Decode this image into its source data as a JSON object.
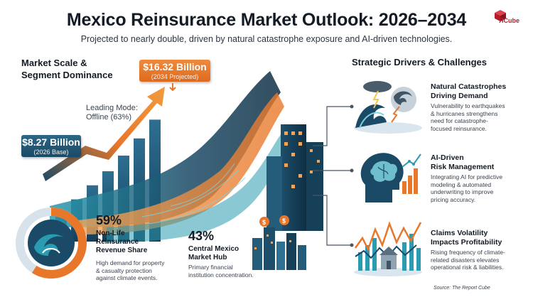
{
  "header": {
    "title": "Mexico Reinsurance Market Outlook: 2026–2034",
    "subtitle": "Projected to nearly double, driven by natural catastrophe exposure and AI-driven technologies."
  },
  "brand": {
    "logo_text": "Cube",
    "logo_letter": "R"
  },
  "market": {
    "heading_line1": "Market Scale &",
    "heading_line2": "Segment Dominance",
    "projected_value": "$16.32 Billion",
    "projected_note": "(2034 Projected)",
    "base_value": "$8.27 Billion",
    "base_note": "(2026 Base)",
    "mode_line1": "Leading Mode:",
    "mode_line2": "Offline (63%)",
    "bar_levels": [
      0.18,
      0.27,
      0.36,
      0.45,
      0.55,
      0.66,
      0.78
    ]
  },
  "stats": [
    {
      "pct": "59%",
      "label_lines": [
        "Non-Life",
        "Reinsurance",
        "Revenue Share"
      ],
      "desc_lines": [
        "High demand for property",
        "& casualty protection",
        "against climate events."
      ]
    },
    {
      "pct": "43%",
      "label_lines": [
        "Central Mexico",
        "Market Hub"
      ],
      "desc_lines": [
        "Primary financial",
        "institution concentration."
      ]
    }
  ],
  "drivers": {
    "heading": "Strategic Drivers & Challenges",
    "items": [
      {
        "title_lines": [
          "Natural Catastrophes",
          "Driving Demand"
        ],
        "desc_lines": [
          "Vulnerability to earthquakes",
          "& hurricanes strengthens",
          "need for catastrophe-",
          "focused reinsurance."
        ]
      },
      {
        "title_lines": [
          "AI-Driven",
          "Risk Management"
        ],
        "desc_lines": [
          "Integrating AI for predictive",
          "modeling & automated",
          "underwriting to improve",
          "pricing accuracy."
        ]
      },
      {
        "title_lines": [
          "Claims Volatility",
          "Impacts Profitability"
        ],
        "desc_lines": [
          "Rising frequency of climate-",
          "related disasters elevates",
          "operational risk & liabilities."
        ]
      }
    ]
  },
  "footer": {
    "source": "Source: The Report Cube"
  },
  "colors": {
    "orange": "#e8772a",
    "navy": "#1a4a66",
    "teal": "#2a9bb0",
    "dark": "#141b25"
  }
}
